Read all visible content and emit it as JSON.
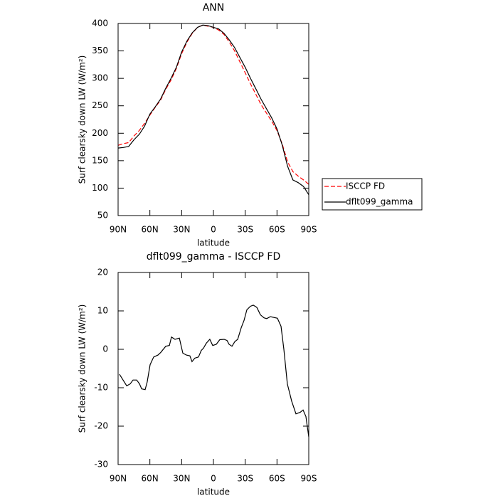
{
  "chart_data": [
    {
      "type": "line",
      "title": "ANN",
      "xlabel": "latitude",
      "ylabel": "Surf clearsky down LW (W/m²)",
      "x": [
        90,
        85,
        80,
        75,
        70,
        65,
        60,
        55,
        50,
        45,
        40,
        35,
        30,
        25,
        20,
        15,
        10,
        5,
        0,
        -5,
        -10,
        -15,
        -20,
        -25,
        -30,
        -35,
        -40,
        -45,
        -50,
        -55,
        -60,
        -65,
        -70,
        -75,
        -80,
        -85,
        -90
      ],
      "series": [
        {
          "name": "ISCCP FD",
          "color": "#ff0000",
          "dash": true,
          "values": [
            178,
            181,
            183,
            195,
            205,
            218,
            233,
            247,
            260,
            280,
            297,
            318,
            345,
            366,
            382,
            393,
            397,
            395,
            393,
            388,
            380,
            366,
            350,
            330,
            310,
            290,
            271,
            252,
            237,
            222,
            205,
            180,
            148,
            130,
            122,
            115,
            107
          ]
        },
        {
          "name": "dflt099_gamma",
          "color": "#000000",
          "dash": false,
          "values": [
            173,
            174,
            176,
            188,
            198,
            213,
            235,
            248,
            262,
            282,
            300,
            320,
            348,
            368,
            383,
            393,
            397,
            396,
            393,
            390,
            382,
            370,
            356,
            338,
            320,
            300,
            281,
            262,
            245,
            228,
            208,
            178,
            140,
            115,
            110,
            103,
            88
          ]
        }
      ],
      "xlim": [
        90,
        -90
      ],
      "xticks": [
        {
          "value": 90,
          "label": "90N"
        },
        {
          "value": 60,
          "label": "60N"
        },
        {
          "value": 30,
          "label": "30N"
        },
        0,
        {
          "value": -30,
          "label": "30S"
        },
        {
          "value": -60,
          "label": "60S"
        },
        {
          "value": -90,
          "label": "90S"
        }
      ],
      "ylim": [
        50,
        400
      ],
      "yticks": [
        50,
        100,
        150,
        200,
        250,
        300,
        350,
        400
      ],
      "legend": "right"
    },
    {
      "type": "line",
      "title": "dflt099_gamma - ISCCP FD",
      "xlabel": "latitude",
      "ylabel": "Surf clearsky down LW (W/m²)",
      "x": [
        88.7,
        81.9,
        78.6,
        75.9,
        72.5,
        69.8,
        67.8,
        64.5,
        62.5,
        59.8,
        56.4,
        52.4,
        49.7,
        45.0,
        41.6,
        39.6,
        36.3,
        32.2,
        28.9,
        25.5,
        22.2,
        20.2,
        17.5,
        14.1,
        11.5,
        9.4,
        6.7,
        3.4,
        0.7,
        -2.7,
        -6.0,
        -10.1,
        -12.8,
        -14.8,
        -17.5,
        -20.2,
        -22.9,
        -26.2,
        -28.9,
        -31.6,
        -34.9,
        -37.6,
        -41.0,
        -44.3,
        -47.7,
        -50.3,
        -53.7,
        -57.0,
        -60.4,
        -63.8,
        -66.5,
        -69.8,
        -73.9,
        -77.9,
        -81.9,
        -84.6,
        -87.3,
        -90
      ],
      "series": [
        {
          "color": "#000000",
          "dash": false,
          "values": [
            -6.5,
            -9.5,
            -9,
            -8,
            -8,
            -9,
            -10.3,
            -10.5,
            -8.5,
            -4,
            -2,
            -1.5,
            -0.8,
            0.8,
            1,
            3.2,
            2.6,
            2.9,
            -1,
            -1.5,
            -1.7,
            -3.2,
            -2.3,
            -2,
            -0.3,
            0.3,
            1.6,
            2.6,
            1,
            1.3,
            2.5,
            2.6,
            2.3,
            1.3,
            0.8,
            2,
            2.6,
            5.6,
            7.5,
            10.3,
            11.2,
            11.5,
            10.9,
            9,
            8.2,
            8,
            8.5,
            8.3,
            8.1,
            6,
            0,
            -9,
            -13.5,
            -16.8,
            -16.4,
            -15.8,
            -17.5,
            -22.8
          ]
        }
      ],
      "xlim": [
        90,
        -90
      ],
      "xticks": [
        {
          "value": 90,
          "label": "90N"
        },
        {
          "value": 60,
          "label": "60N"
        },
        {
          "value": 30,
          "label": "30N"
        },
        0,
        {
          "value": -30,
          "label": "30S"
        },
        {
          "value": -60,
          "label": "60S"
        },
        {
          "value": -90,
          "label": "90S"
        }
      ],
      "ylim": [
        -30,
        20
      ],
      "yticks": [
        -30,
        -20,
        -10,
        0,
        10,
        20
      ]
    }
  ]
}
